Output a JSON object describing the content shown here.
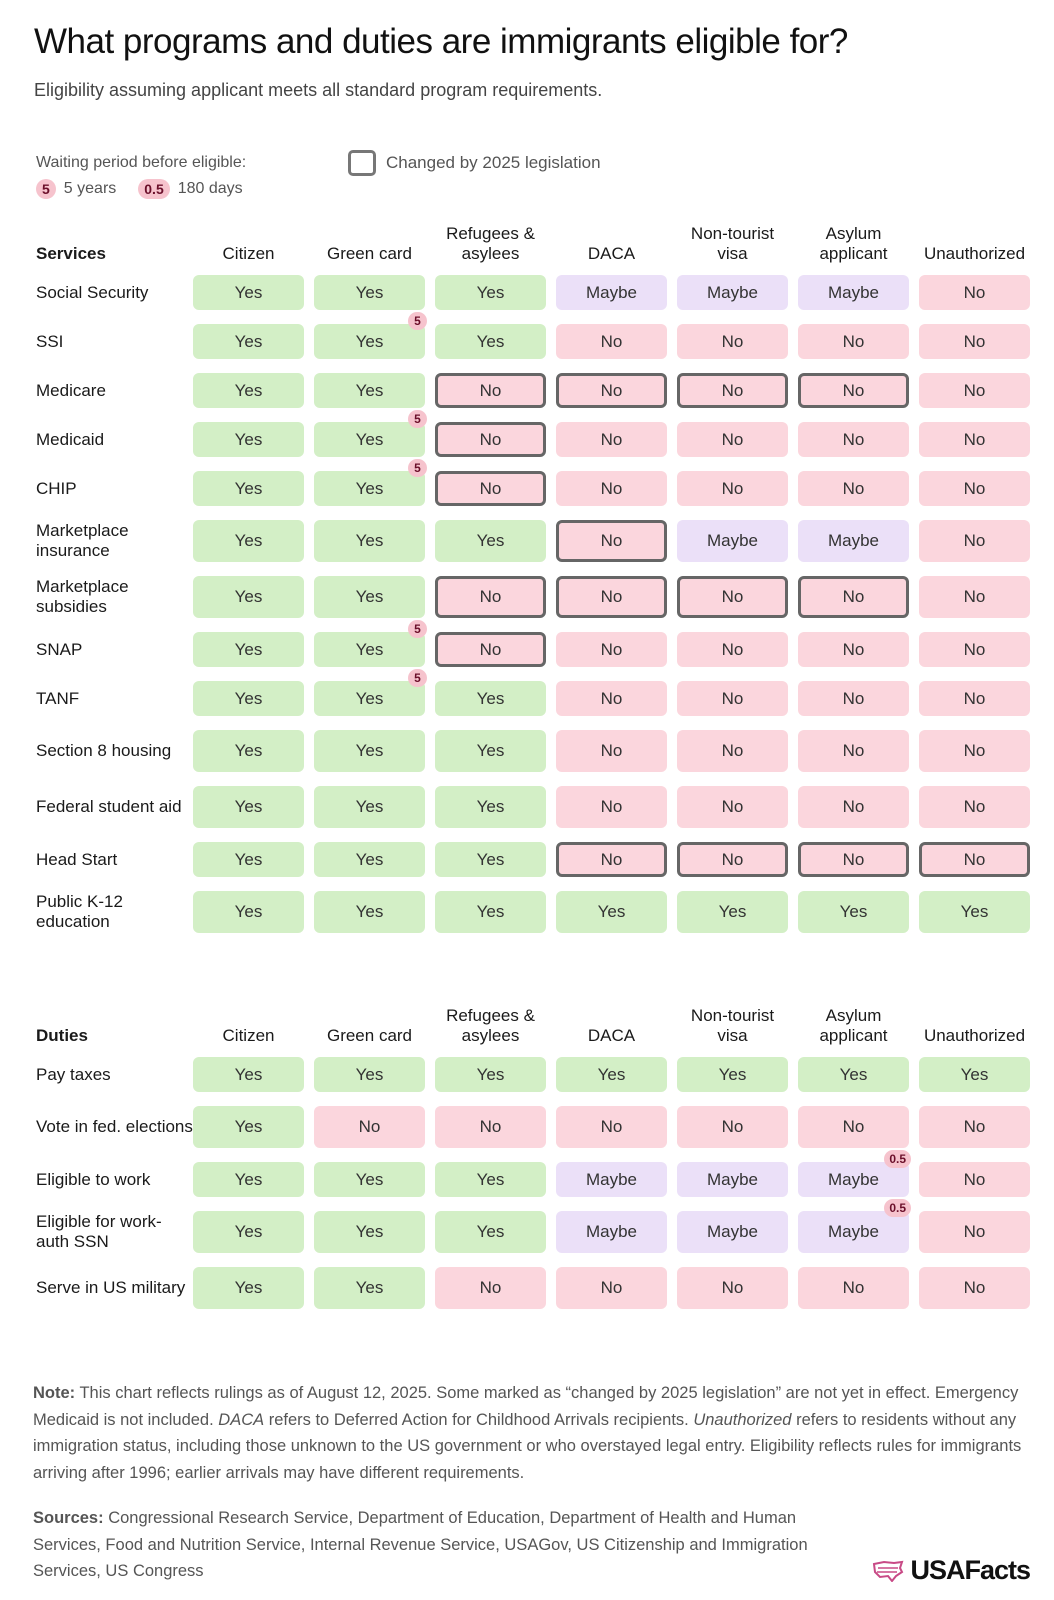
{
  "title": "What programs and duties are immigrants eligible for?",
  "subtitle": "Eligibility assuming applicant meets all standard program requirements.",
  "legend": {
    "waiting_label": "Waiting period before eligible:",
    "items": [
      {
        "badge": "5",
        "label": "5 years"
      },
      {
        "badge": "0.5",
        "label": "180 days"
      }
    ],
    "changed_label": "Changed by 2025 legislation"
  },
  "colors": {
    "Yes": "#d3efc6",
    "No": "#fbd6dd",
    "Maybe": "#ebe0f8",
    "badge": "#f6c3cd",
    "changed_border": "#666666"
  },
  "columns": [
    "Citizen",
    "Green card",
    "Refugees & asylees",
    "DACA",
    "Non-tourist visa",
    "Asylum applicant",
    "Unauthorized"
  ],
  "tables": [
    {
      "heading": "Services",
      "rows": [
        {
          "label": "Social Security",
          "cells": [
            "Yes",
            "Yes",
            "Yes",
            "Maybe",
            "Maybe",
            "Maybe",
            "No"
          ]
        },
        {
          "label": "SSI",
          "cells": [
            "Yes",
            "Yes",
            "Yes",
            "No",
            "No",
            "No",
            "No"
          ],
          "wait": {
            "1": "5"
          }
        },
        {
          "label": "Medicare",
          "cells": [
            "Yes",
            "Yes",
            "No",
            "No",
            "No",
            "No",
            "No"
          ],
          "changed": [
            2,
            3,
            4,
            5
          ]
        },
        {
          "label": "Medicaid",
          "cells": [
            "Yes",
            "Yes",
            "No",
            "No",
            "No",
            "No",
            "No"
          ],
          "changed": [
            2
          ],
          "wait": {
            "1": "5"
          }
        },
        {
          "label": "CHIP",
          "cells": [
            "Yes",
            "Yes",
            "No",
            "No",
            "No",
            "No",
            "No"
          ],
          "changed": [
            2
          ],
          "wait": {
            "1": "5"
          }
        },
        {
          "label": "Marketplace insurance",
          "cells": [
            "Yes",
            "Yes",
            "Yes",
            "No",
            "Maybe",
            "Maybe",
            "No"
          ],
          "changed": [
            3
          ]
        },
        {
          "label": "Marketplace subsidies",
          "cells": [
            "Yes",
            "Yes",
            "No",
            "No",
            "No",
            "No",
            "No"
          ],
          "changed": [
            2,
            3,
            4,
            5
          ]
        },
        {
          "label": "SNAP",
          "cells": [
            "Yes",
            "Yes",
            "No",
            "No",
            "No",
            "No",
            "No"
          ],
          "changed": [
            2
          ],
          "wait": {
            "1": "5"
          }
        },
        {
          "label": "TANF",
          "cells": [
            "Yes",
            "Yes",
            "Yes",
            "No",
            "No",
            "No",
            "No"
          ],
          "wait": {
            "1": "5"
          }
        },
        {
          "label": "Section 8 housing",
          "cells": [
            "Yes",
            "Yes",
            "Yes",
            "No",
            "No",
            "No",
            "No"
          ]
        },
        {
          "label": "Federal student aid",
          "cells": [
            "Yes",
            "Yes",
            "Yes",
            "No",
            "No",
            "No",
            "No"
          ]
        },
        {
          "label": "Head Start",
          "cells": [
            "Yes",
            "Yes",
            "Yes",
            "No",
            "No",
            "No",
            "No"
          ],
          "changed": [
            3,
            4,
            5,
            6
          ]
        },
        {
          "label": "Public K-12 education",
          "cells": [
            "Yes",
            "Yes",
            "Yes",
            "Yes",
            "Yes",
            "Yes",
            "Yes"
          ]
        }
      ]
    },
    {
      "heading": "Duties",
      "rows": [
        {
          "label": "Pay taxes",
          "cells": [
            "Yes",
            "Yes",
            "Yes",
            "Yes",
            "Yes",
            "Yes",
            "Yes"
          ]
        },
        {
          "label": "Vote in fed. elections",
          "cells": [
            "Yes",
            "No",
            "No",
            "No",
            "No",
            "No",
            "No"
          ]
        },
        {
          "label": "Eligible to work",
          "cells": [
            "Yes",
            "Yes",
            "Yes",
            "Maybe",
            "Maybe",
            "Maybe",
            "No"
          ],
          "wait": {
            "5": "0.5"
          }
        },
        {
          "label": "Eligible for work-auth SSN",
          "cells": [
            "Yes",
            "Yes",
            "Yes",
            "Maybe",
            "Maybe",
            "Maybe",
            "No"
          ],
          "wait": {
            "5": "0.5"
          }
        },
        {
          "label": "Serve in US military",
          "cells": [
            "Yes",
            "Yes",
            "No",
            "No",
            "No",
            "No",
            "No"
          ]
        }
      ]
    }
  ],
  "note": {
    "lead": "Note:",
    "t1": " This chart reflects rulings as of August 12, 2025. Some marked as “changed by 2025 legislation” are not yet in effect. Emergency Medicaid is not included. ",
    "i1": "DACA",
    "t2": " refers to Deferred Action for Childhood Arrivals recipients. ",
    "i2": "Unauthorized",
    "t3": " refers to residents without any immigration status, including those unknown to the US government or who overstayed legal entry. Eligibility reflects rules for immigrants arriving after 1996; earlier arrivals may have different requirements."
  },
  "sources": {
    "lead": "Sources:",
    "text": " Congressional Research Service, Department of Education, Department of Health and Human Services, Food and Nutrition Service, Internal Revenue Service, USAGov, US Citizenship and Immigration Services, US Congress"
  },
  "logo": "USAFacts"
}
